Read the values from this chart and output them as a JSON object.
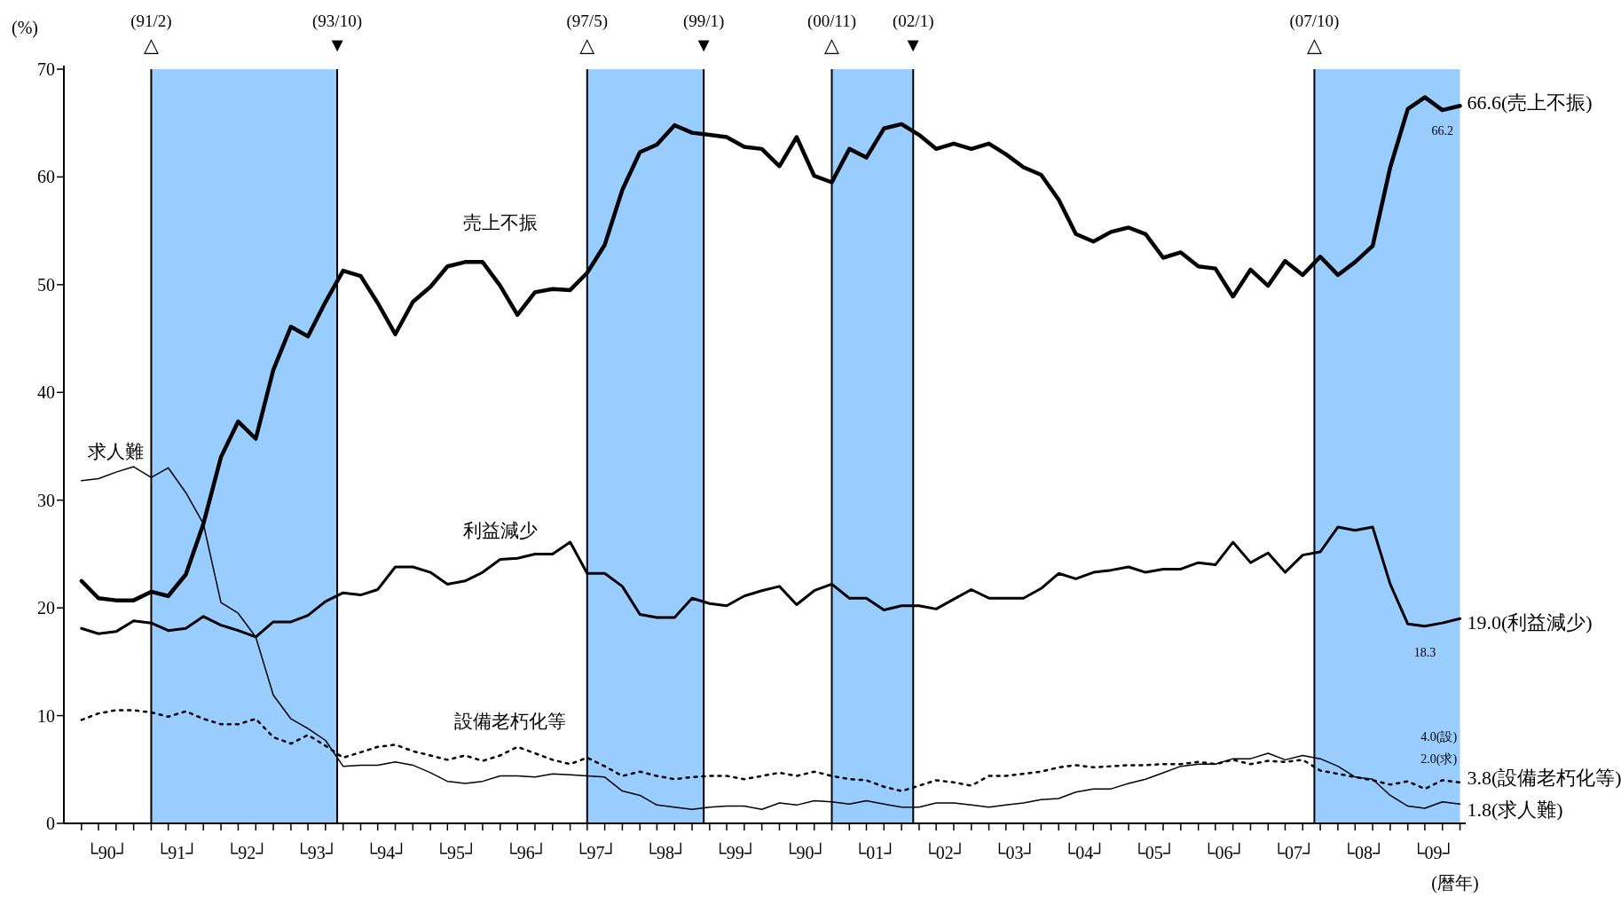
{
  "chart_data": {
    "type": "line",
    "xlabel": "(暦年)",
    "ylabel": "(%)",
    "xlim": [
      "1989-11",
      "2009-12"
    ],
    "ylim": [
      0,
      70
    ],
    "yticks": [
      0,
      10,
      20,
      30,
      40,
      50,
      60,
      70
    ],
    "xticks": [
      {
        "value": "1990-02",
        "label": null
      },
      {
        "value": "1990-05",
        "label": null
      },
      {
        "value": "1990-08",
        "label": null
      },
      {
        "value": "1990-11",
        "label": null
      },
      {
        "value": "1991-02",
        "label": null
      },
      {
        "value": "1991-05",
        "label": null
      },
      {
        "value": "1991-08",
        "label": null
      },
      {
        "value": "1991-11",
        "label": null
      },
      {
        "value": "1992-02",
        "label": null
      },
      {
        "value": "1992-05",
        "label": null
      },
      {
        "value": "1992-08",
        "label": null
      },
      {
        "value": "1992-11",
        "label": null
      },
      {
        "value": "1993-02",
        "label": null
      },
      {
        "value": "1993-05",
        "label": null
      },
      {
        "value": "1993-08",
        "label": null
      },
      {
        "value": "1993-11",
        "label": null
      },
      {
        "value": "1994-02",
        "label": null
      },
      {
        "value": "1994-05",
        "label": null
      },
      {
        "value": "1994-08",
        "label": null
      },
      {
        "value": "1994-11",
        "label": null
      },
      {
        "value": "1995-02",
        "label": null
      },
      {
        "value": "1995-05",
        "label": null
      },
      {
        "value": "1995-08",
        "label": null
      },
      {
        "value": "1995-11",
        "label": null
      },
      {
        "value": "1996-02",
        "label": null
      },
      {
        "value": "1996-05",
        "label": null
      },
      {
        "value": "1996-08",
        "label": null
      },
      {
        "value": "1996-11",
        "label": null
      },
      {
        "value": "1997-02",
        "label": null
      },
      {
        "value": "1997-05",
        "label": null
      },
      {
        "value": "1997-08",
        "label": null
      },
      {
        "value": "1997-11",
        "label": null
      },
      {
        "value": "1998-02",
        "label": null
      },
      {
        "value": "1998-05",
        "label": null
      },
      {
        "value": "1998-08",
        "label": null
      },
      {
        "value": "1998-11",
        "label": null
      },
      {
        "value": "1999-02",
        "label": null
      },
      {
        "value": "1999-05",
        "label": null
      },
      {
        "value": "1999-08",
        "label": null
      },
      {
        "value": "1999-11",
        "label": null
      },
      {
        "value": "2000-02",
        "label": null
      },
      {
        "value": "2000-05",
        "label": null
      },
      {
        "value": "2000-08",
        "label": null
      },
      {
        "value": "2000-11",
        "label": null
      },
      {
        "value": "2001-02",
        "label": null
      },
      {
        "value": "2001-05",
        "label": null
      },
      {
        "value": "2001-08",
        "label": null
      },
      {
        "value": "2001-11",
        "label": null
      },
      {
        "value": "2002-02",
        "label": null
      },
      {
        "value": "2002-05",
        "label": null
      },
      {
        "value": "2002-08",
        "label": null
      },
      {
        "value": "2002-11",
        "label": null
      },
      {
        "value": "2003-02",
        "label": null
      },
      {
        "value": "2003-05",
        "label": null
      },
      {
        "value": "2003-08",
        "label": null
      },
      {
        "value": "2003-11",
        "label": null
      },
      {
        "value": "2004-02",
        "label": null
      },
      {
        "value": "2004-05",
        "label": null
      },
      {
        "value": "2004-08",
        "label": null
      },
      {
        "value": "2004-11",
        "label": null
      },
      {
        "value": "2005-02",
        "label": null
      },
      {
        "value": "2005-05",
        "label": null
      },
      {
        "value": "2005-08",
        "label": null
      },
      {
        "value": "2005-11",
        "label": null
      },
      {
        "value": "2006-02",
        "label": null
      },
      {
        "value": "2006-05",
        "label": null
      },
      {
        "value": "2006-08",
        "label": null
      },
      {
        "value": "2006-11",
        "label": null
      },
      {
        "value": "2007-02",
        "label": null
      },
      {
        "value": "2007-05",
        "label": null
      },
      {
        "value": "2007-08",
        "label": null
      },
      {
        "value": "2007-11",
        "label": null
      },
      {
        "value": "2008-02",
        "label": null
      },
      {
        "value": "2008-05",
        "label": null
      },
      {
        "value": "2008-08",
        "label": null
      },
      {
        "value": "2008-11",
        "label": null
      },
      {
        "value": "2009-02",
        "label": null
      },
      {
        "value": "2009-05",
        "label": null
      },
      {
        "value": "2009-08",
        "label": null
      },
      {
        "value": "2009-11",
        "label": null
      },
      {
        "value": "1990-06-15",
        "label": "└90┘"
      },
      {
        "value": "1991-06-15",
        "label": "└91┘"
      },
      {
        "value": "1992-06-15",
        "label": "└92┘"
      },
      {
        "value": "1993-06-15",
        "label": "└93┘"
      },
      {
        "value": "1994-06-15",
        "label": "└94┘"
      },
      {
        "value": "1995-06-15",
        "label": "└95┘"
      },
      {
        "value": "1996-06-15",
        "label": "└96┘"
      },
      {
        "value": "1997-06-15",
        "label": "└97┘"
      },
      {
        "value": "1998-06-15",
        "label": "└98┘"
      },
      {
        "value": "1999-06-15",
        "label": "└99┘"
      },
      {
        "value": "2000-06-15",
        "label": "└90┘"
      },
      {
        "value": "2001-06-15",
        "label": "└01┘"
      },
      {
        "value": "2002-06-15",
        "label": "└02┘"
      },
      {
        "value": "2003-06-15",
        "label": "└03┘"
      },
      {
        "value": "2004-06-15",
        "label": "└04┘"
      },
      {
        "value": "2005-06-15",
        "label": "└05┘"
      },
      {
        "value": "2006-06-15",
        "label": "└06┘"
      },
      {
        "value": "2007-06-15",
        "label": "└07┘"
      },
      {
        "value": "2008-06-15",
        "label": "└08┘"
      },
      {
        "value": "2009-06-15",
        "label": "└09┘"
      }
    ],
    "x": [
      "1990-02",
      "1990-05",
      "1990-08",
      "1990-11",
      "1991-02",
      "1991-05",
      "1991-08",
      "1991-11",
      "1992-02",
      "1992-05",
      "1992-08",
      "1992-11",
      "1993-02",
      "1993-05",
      "1993-08",
      "1993-11",
      "1994-02",
      "1994-05",
      "1994-08",
      "1994-11",
      "1995-02",
      "1995-05",
      "1995-08",
      "1995-11",
      "1996-02",
      "1996-05",
      "1996-08",
      "1996-11",
      "1997-02",
      "1997-05",
      "1997-08",
      "1997-11",
      "1998-02",
      "1998-05",
      "1998-08",
      "1998-11",
      "1999-02",
      "1999-05",
      "1999-08",
      "1999-11",
      "2000-02",
      "2000-05",
      "2000-08",
      "2000-11",
      "2001-02",
      "2001-05",
      "2001-08",
      "2001-11",
      "2002-02",
      "2002-05",
      "2002-08",
      "2002-11",
      "2003-02",
      "2003-05",
      "2003-08",
      "2003-11",
      "2004-02",
      "2004-05",
      "2004-08",
      "2004-11",
      "2005-02",
      "2005-05",
      "2005-08",
      "2005-11",
      "2006-02",
      "2006-05",
      "2006-08",
      "2006-11",
      "2007-02",
      "2007-05",
      "2007-08",
      "2007-11",
      "2008-02",
      "2008-05",
      "2008-08",
      "2008-11",
      "2009-02",
      "2009-05",
      "2009-08",
      "2009-11"
    ],
    "series": [
      {
        "name": "売上不振",
        "color": "#000000",
        "line_style": "solid",
        "values": [
          22.5,
          20.9,
          20.7,
          20.7,
          21.5,
          21.1,
          23.1,
          27.8,
          34.0,
          37.3,
          35.7,
          42.1,
          46.1,
          45.2,
          48.4,
          51.3,
          50.8,
          48.3,
          45.4,
          48.4,
          49.8,
          51.7,
          52.1,
          52.1,
          49.9,
          47.2,
          49.3,
          49.6,
          49.5,
          51.1,
          53.7,
          58.8,
          62.3,
          63.0,
          64.8,
          64.1,
          63.9,
          63.7,
          62.8,
          62.6,
          61.0,
          63.7,
          60.1,
          59.5,
          62.6,
          61.8,
          64.5,
          64.9,
          63.9,
          62.6,
          63.1,
          62.6,
          63.1,
          62.1,
          60.9,
          60.2,
          57.9,
          54.7,
          54.0,
          54.9,
          55.3,
          54.7,
          52.5,
          53.0,
          51.7,
          51.5,
          48.9,
          51.4,
          49.9,
          52.2,
          50.9,
          52.6,
          50.9,
          52.1,
          53.6,
          60.9,
          66.3,
          67.4,
          66.2,
          66.6
        ]
      },
      {
        "name": "利益減少",
        "color": "#000000",
        "line_style": "solid",
        "values": [
          18.1,
          17.6,
          17.8,
          18.8,
          18.6,
          17.9,
          18.1,
          19.2,
          18.4,
          17.9,
          17.3,
          18.7,
          18.7,
          19.3,
          20.6,
          21.4,
          21.2,
          21.7,
          23.8,
          23.8,
          23.3,
          22.2,
          22.5,
          23.3,
          24.5,
          24.6,
          25.0,
          25.0,
          26.1,
          23.2,
          23.2,
          22.0,
          19.4,
          19.1,
          19.1,
          20.9,
          20.4,
          20.2,
          21.1,
          21.6,
          22.0,
          20.3,
          21.6,
          22.2,
          20.9,
          20.9,
          19.8,
          20.2,
          20.2,
          19.9,
          20.8,
          21.7,
          20.9,
          20.9,
          20.9,
          21.8,
          23.2,
          22.7,
          23.3,
          23.5,
          23.8,
          23.3,
          23.6,
          23.6,
          24.2,
          24.0,
          26.1,
          24.2,
          25.1,
          23.3,
          24.9,
          25.2,
          27.5,
          27.2,
          27.5,
          22.2,
          18.5,
          18.3,
          18.6,
          19.0
        ]
      },
      {
        "name": "設備老朽化等",
        "color": "#000000",
        "line_style": "dotted",
        "values": [
          9.6,
          10.2,
          10.5,
          10.5,
          10.3,
          9.9,
          10.4,
          9.7,
          9.2,
          9.2,
          9.7,
          8.0,
          7.4,
          8.2,
          7.2,
          6.1,
          6.6,
          7.1,
          7.3,
          6.7,
          6.3,
          5.9,
          6.3,
          5.8,
          6.3,
          7.1,
          6.5,
          5.9,
          5.5,
          6.1,
          5.3,
          4.4,
          4.8,
          4.4,
          4.1,
          4.3,
          4.4,
          4.4,
          4.1,
          4.4,
          4.7,
          4.4,
          4.8,
          4.4,
          4.1,
          4.0,
          3.4,
          3.0,
          3.5,
          4.0,
          3.8,
          3.5,
          4.4,
          4.4,
          4.6,
          4.8,
          5.2,
          5.4,
          5.2,
          5.3,
          5.4,
          5.4,
          5.5,
          5.5,
          5.7,
          5.5,
          5.9,
          5.5,
          5.8,
          5.7,
          5.9,
          4.9,
          4.6,
          4.3,
          4.0,
          3.6,
          3.9,
          3.2,
          4.0,
          3.8
        ]
      },
      {
        "name": "求人難",
        "color": "#000000",
        "line_style": "solid",
        "values": [
          31.8,
          32.0,
          32.6,
          33.1,
          32.1,
          33.0,
          30.7,
          27.8,
          20.5,
          19.5,
          17.3,
          11.9,
          9.7,
          8.8,
          7.7,
          5.3,
          5.4,
          5.4,
          5.7,
          5.4,
          4.7,
          3.9,
          3.7,
          3.9,
          4.4,
          4.4,
          4.3,
          4.6,
          4.5,
          4.4,
          4.3,
          3.0,
          2.6,
          1.7,
          1.5,
          1.3,
          1.5,
          1.6,
          1.6,
          1.3,
          1.9,
          1.7,
          2.1,
          2.0,
          1.8,
          2.1,
          1.8,
          1.5,
          1.5,
          1.9,
          1.9,
          1.7,
          1.5,
          1.7,
          1.9,
          2.2,
          2.3,
          2.9,
          3.2,
          3.2,
          3.7,
          4.1,
          4.7,
          5.3,
          5.5,
          5.5,
          6.0,
          6.0,
          6.5,
          5.9,
          6.3,
          6.0,
          5.3,
          4.3,
          4.1,
          2.6,
          1.6,
          1.4,
          2.0,
          1.8
        ]
      }
    ],
    "ref_lines": [
      {
        "axis": "x",
        "value": "1991-02",
        "label": "(91/2)\n△",
        "color": "#000000"
      },
      {
        "axis": "x",
        "value": "1993-10",
        "label": "(93/10)\n▼",
        "color": "#000000"
      },
      {
        "axis": "x",
        "value": "1997-05",
        "label": "(97/5)\n△",
        "color": "#000000"
      },
      {
        "axis": "x",
        "value": "1999-01",
        "label": "(99/1)\n▼",
        "color": "#000000"
      },
      {
        "axis": "x",
        "value": "2000-11",
        "label": "(00/11)\n△",
        "color": "#000000"
      },
      {
        "axis": "x",
        "value": "2002-01",
        "label": "(02/1)\n▼",
        "color": "#000000"
      },
      {
        "axis": "x",
        "value": "2007-10",
        "label": "(07/10)\n△",
        "color": "#000000"
      }
    ],
    "bands": [
      {
        "axis": "x",
        "from": "1991-02",
        "to": "1993-10",
        "color": "#99ccff"
      },
      {
        "axis": "x",
        "from": "1997-05",
        "to": "1999-01",
        "color": "#99ccff"
      },
      {
        "axis": "x",
        "from": "2000-11",
        "to": "2002-01",
        "color": "#99ccff"
      },
      {
        "axis": "x",
        "from": "2007-10",
        "to": "2009-11",
        "color": "#99ccff"
      }
    ],
    "annotations": [
      {
        "text": "66.6(売上不振)",
        "x": "2009-11",
        "y": 66.6
      },
      {
        "text": "66.2",
        "x": "2009-08",
        "y": 66.2
      },
      {
        "text": "19.0(利益減少)",
        "x": "2009-11",
        "y": 19.0
      },
      {
        "text": "18.3",
        "x": "2009-05",
        "y": 18.3
      },
      {
        "text": "4.0(設)",
        "x": "2009-08",
        "y": 4.0
      },
      {
        "text": "2.0(求)",
        "x": "2009-08",
        "y": 2.0
      },
      {
        "text": "3.8(設備老朽化等)",
        "x": "2009-11",
        "y": 3.8
      },
      {
        "text": "1.8(求人難)",
        "x": "2009-11",
        "y": 1.8
      }
    ]
  }
}
